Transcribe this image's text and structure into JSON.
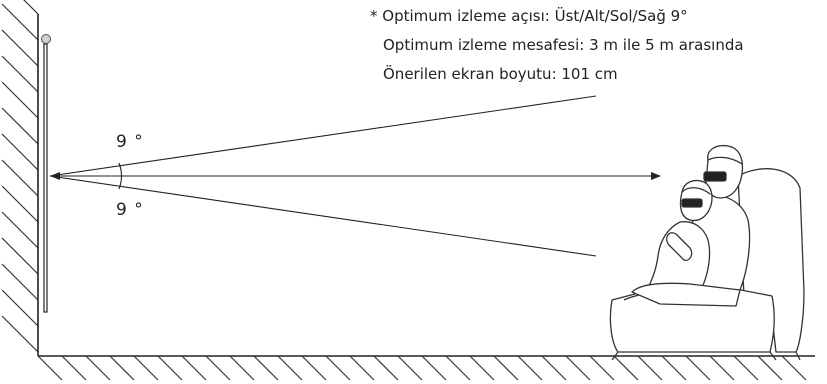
{
  "notes": {
    "viewing_angle": "* Optimum izleme açısı: Üst/Alt/Sol/Sağ 9°",
    "viewing_distance": "Optimum izleme mesafesi: 3 m ile 5 m arasında",
    "screen_size": "Önerilen ekran boyutu: 101 cm"
  },
  "angles": {
    "upper": "9 °",
    "lower": "9 °"
  },
  "icons": {
    "viewers": "viewers-with-3d-glasses-icon",
    "armchair": "armchair-icon",
    "tv": "tv-screen-icon"
  }
}
